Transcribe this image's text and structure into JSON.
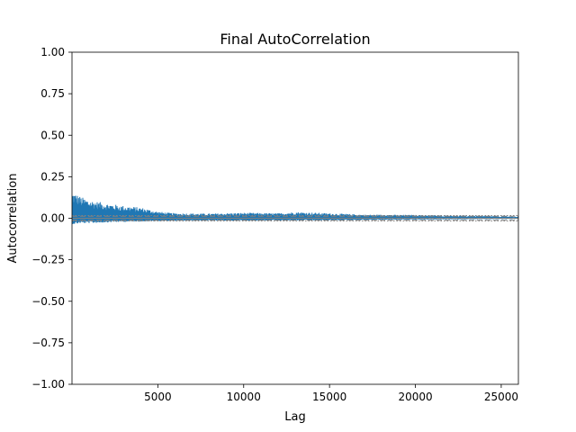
{
  "chart_data": {
    "type": "line",
    "title": "Final AutoCorrelation",
    "xlabel": "Lag",
    "ylabel": "Autocorrelation",
    "xlim": [
      1,
      26000
    ],
    "ylim": [
      -1.0,
      1.0
    ],
    "x_ticks": [
      5000,
      10000,
      15000,
      20000,
      25000
    ],
    "x_tick_labels": [
      "5000",
      "10000",
      "15000",
      "20000",
      "25000"
    ],
    "y_ticks": [
      -1.0,
      -0.75,
      -0.5,
      -0.25,
      0.0,
      0.25,
      0.5,
      0.75,
      1.0
    ],
    "y_tick_labels": [
      "−1.00",
      "−0.75",
      "−0.50",
      "−0.25",
      "0.00",
      "0.25",
      "0.50",
      "0.75",
      "1.00"
    ],
    "grid": false,
    "reference_lines": {
      "solid_y": [
        0.0
      ],
      "dashed_y": [
        0.0122,
        -0.0122
      ],
      "dotted_y": [
        0.016,
        -0.016
      ]
    },
    "series": [
      {
        "color": "#1f77b4",
        "envelope": {
          "x": [
            1,
            200,
            500,
            1000,
            1500,
            2000,
            3000,
            4000,
            5000,
            6000,
            8000,
            10000,
            12000,
            13000,
            15000,
            17000,
            20000,
            23000,
            26000
          ],
          "upper": [
            0.16,
            0.15,
            0.13,
            0.11,
            0.1,
            0.09,
            0.075,
            0.065,
            0.04,
            0.03,
            0.028,
            0.033,
            0.03,
            0.038,
            0.03,
            0.022,
            0.02,
            0.015,
            0.01
          ],
          "lower": [
            -0.035,
            -0.035,
            -0.03,
            -0.03,
            -0.028,
            -0.025,
            -0.022,
            -0.02,
            -0.018,
            -0.016,
            -0.015,
            -0.015,
            -0.014,
            -0.014,
            -0.013,
            -0.01,
            -0.008,
            -0.006,
            -0.004
          ]
        }
      }
    ],
    "colors": {
      "series": "#1f77b4",
      "reference": "#808080",
      "axes": "#000000"
    }
  }
}
